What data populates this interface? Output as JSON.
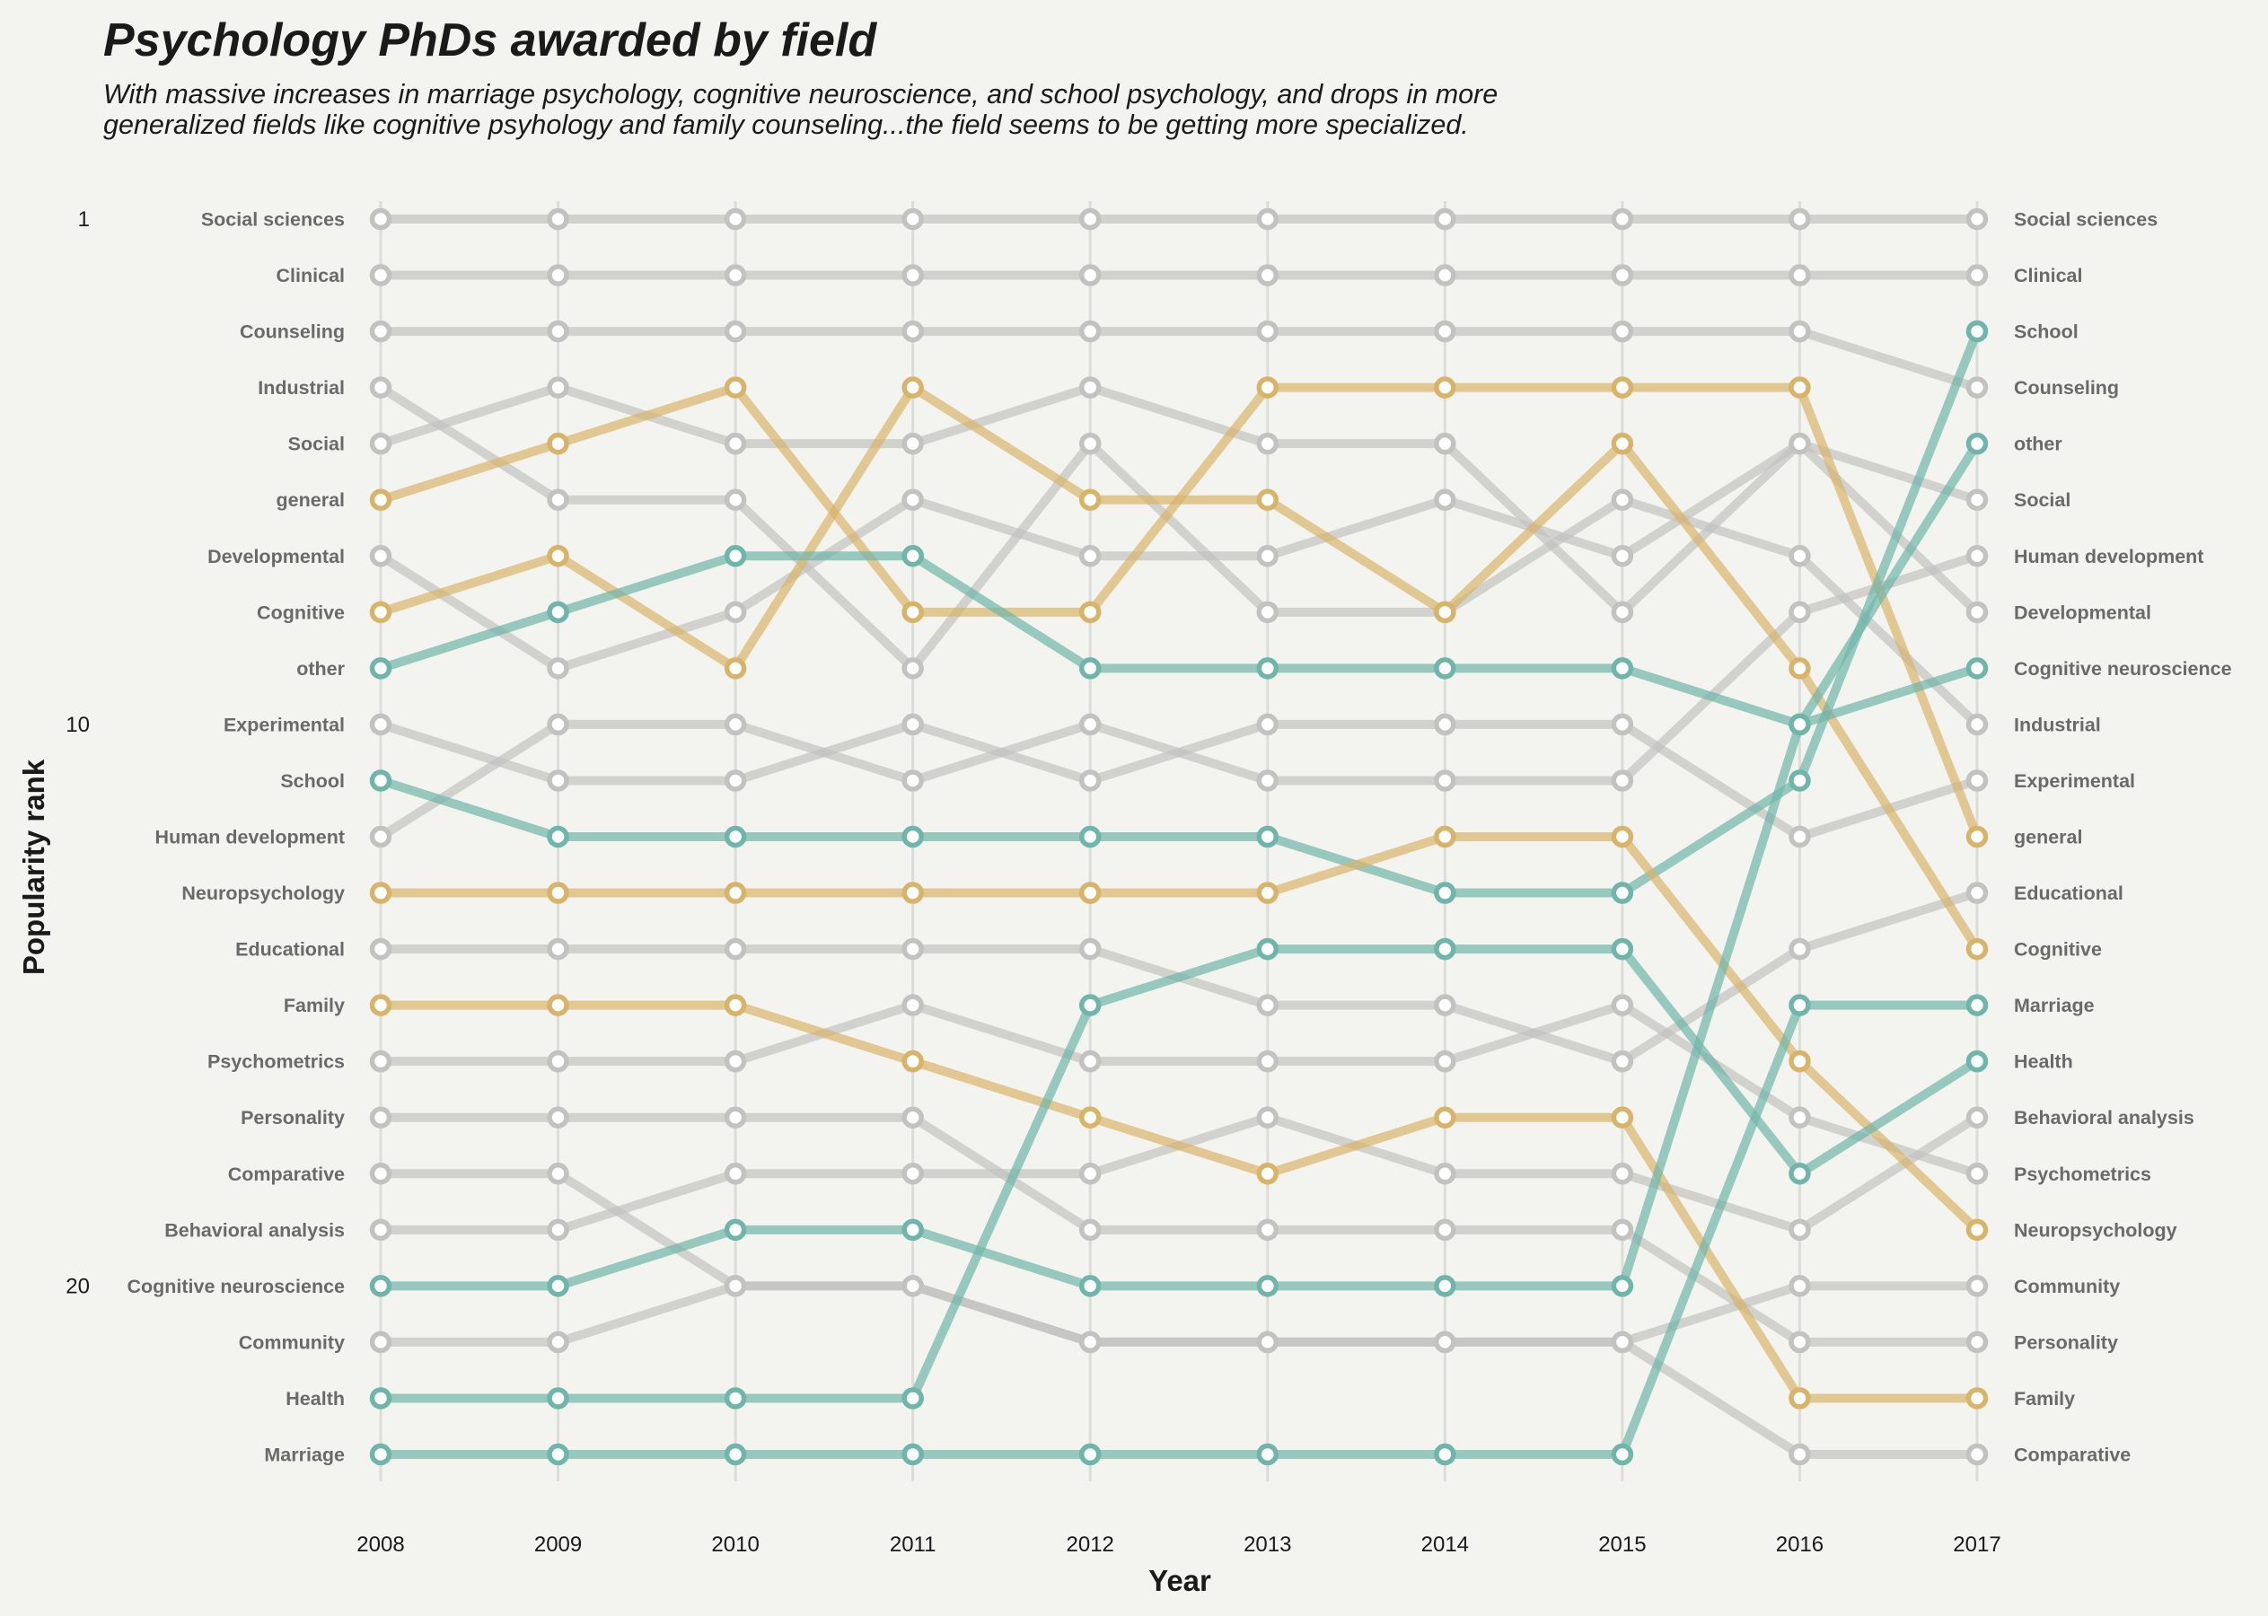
{
  "chart_data": {
    "type": "line",
    "title": "Psychology PhDs awarded by field",
    "subtitle_lines": [
      "With massive increases in marriage psychology, cognitive neuroscience, and school psychology, and drops in more",
      "generalized fields like cognitive psyhology and family counseling...the field seems to be getting more specialized."
    ],
    "xlabel": "Year",
    "ylabel": "Popularity rank",
    "y_reversed": true,
    "ylim": [
      1,
      23
    ],
    "yticks": [
      1,
      10,
      20
    ],
    "x": [
      2008,
      2009,
      2010,
      2011,
      2012,
      2013,
      2014,
      2015,
      2016,
      2017
    ],
    "colors": {
      "increase": "#6fb5aa",
      "decrease": "#d8b46a",
      "neutral": "#c2c2c0",
      "background": "#f3f3ef"
    },
    "series": [
      {
        "name": "Social sciences",
        "trend": "neutral",
        "ranks": [
          1,
          1,
          1,
          1,
          1,
          1,
          1,
          1,
          1,
          1
        ]
      },
      {
        "name": "Clinical",
        "trend": "neutral",
        "ranks": [
          2,
          2,
          2,
          2,
          2,
          2,
          2,
          2,
          2,
          2
        ]
      },
      {
        "name": "Counseling",
        "trend": "neutral",
        "ranks": [
          3,
          3,
          3,
          3,
          3,
          3,
          3,
          3,
          3,
          4
        ]
      },
      {
        "name": "Industrial",
        "trend": "neutral",
        "ranks": [
          4,
          6,
          6,
          9,
          5,
          8,
          8,
          6,
          7,
          10
        ]
      },
      {
        "name": "Social",
        "trend": "neutral",
        "ranks": [
          5,
          4,
          5,
          5,
          4,
          5,
          5,
          8,
          5,
          6
        ]
      },
      {
        "name": "general",
        "trend": "decrease",
        "ranks": [
          6,
          5,
          4,
          8,
          8,
          4,
          4,
          4,
          4,
          12
        ]
      },
      {
        "name": "Developmental",
        "trend": "neutral",
        "ranks": [
          7,
          9,
          8,
          6,
          7,
          7,
          6,
          7,
          5,
          8
        ]
      },
      {
        "name": "Cognitive",
        "trend": "decrease",
        "ranks": [
          8,
          7,
          9,
          4,
          6,
          6,
          8,
          5,
          9,
          14
        ]
      },
      {
        "name": "other",
        "trend": "increase",
        "ranks": [
          9,
          8,
          7,
          7,
          9,
          9,
          9,
          9,
          10,
          5
        ]
      },
      {
        "name": "Experimental",
        "trend": "neutral",
        "ranks": [
          10,
          11,
          11,
          10,
          11,
          10,
          10,
          10,
          12,
          11
        ]
      },
      {
        "name": "School",
        "trend": "increase",
        "ranks": [
          11,
          12,
          12,
          12,
          12,
          12,
          13,
          13,
          11,
          3
        ]
      },
      {
        "name": "Human development",
        "trend": "neutral",
        "ranks": [
          12,
          10,
          10,
          11,
          10,
          11,
          11,
          11,
          8,
          7
        ]
      },
      {
        "name": "Neuropsychology",
        "trend": "decrease",
        "ranks": [
          13,
          13,
          13,
          13,
          13,
          13,
          12,
          12,
          16,
          19
        ]
      },
      {
        "name": "Educational",
        "trend": "neutral",
        "ranks": [
          14,
          14,
          14,
          14,
          14,
          15,
          15,
          16,
          14,
          13
        ]
      },
      {
        "name": "Family",
        "trend": "decrease",
        "ranks": [
          15,
          15,
          15,
          16,
          17,
          18,
          17,
          17,
          22,
          22
        ]
      },
      {
        "name": "Psychometrics",
        "trend": "neutral",
        "ranks": [
          16,
          16,
          16,
          15,
          16,
          16,
          16,
          15,
          17,
          18
        ]
      },
      {
        "name": "Personality",
        "trend": "neutral",
        "ranks": [
          17,
          17,
          17,
          17,
          19,
          19,
          19,
          19,
          21,
          21
        ]
      },
      {
        "name": "Comparative",
        "trend": "neutral",
        "ranks": [
          18,
          18,
          20,
          20,
          21,
          21,
          21,
          21,
          23,
          23
        ]
      },
      {
        "name": "Behavioral analysis",
        "trend": "neutral",
        "ranks": [
          19,
          19,
          18,
          18,
          18,
          17,
          18,
          18,
          19,
          17
        ]
      },
      {
        "name": "Cognitive neuroscience",
        "trend": "increase",
        "ranks": [
          20,
          20,
          19,
          19,
          20,
          20,
          20,
          20,
          10,
          9
        ]
      },
      {
        "name": "Community",
        "trend": "neutral",
        "ranks": [
          21,
          21,
          20,
          20,
          21,
          21,
          21,
          21,
          20,
          20
        ]
      },
      {
        "name": "Health",
        "trend": "increase",
        "ranks": [
          22,
          22,
          22,
          22,
          15,
          14,
          14,
          14,
          18,
          16
        ]
      },
      {
        "name": "Marriage",
        "trend": "increase",
        "ranks": [
          23,
          23,
          23,
          23,
          23,
          23,
          23,
          23,
          15,
          15
        ]
      }
    ],
    "left_labels": [
      "Social sciences",
      "Clinical",
      "Counseling",
      "Industrial",
      "Social",
      "general",
      "Developmental",
      "Cognitive",
      "other",
      "Experimental",
      "School",
      "Human development",
      "Neuropsychology",
      "Educational",
      "Family",
      "Psychometrics",
      "Personality",
      "Comparative",
      "Behavioral analysis",
      "Cognitive neuroscience",
      "Community",
      "Health",
      "Marriage"
    ],
    "right_labels": [
      "Social sciences",
      "Clinical",
      "School",
      "Counseling",
      "other",
      "Social",
      "Human development",
      "Developmental",
      "Cognitive neuroscience",
      "Industrial",
      "Experimental",
      "general",
      "Educational",
      "Cognitive",
      "Marriage",
      "Health",
      "Behavioral analysis",
      "Psychometrics",
      "Neuropsychology",
      "Community",
      "Personality",
      "Family",
      "Comparative"
    ]
  }
}
